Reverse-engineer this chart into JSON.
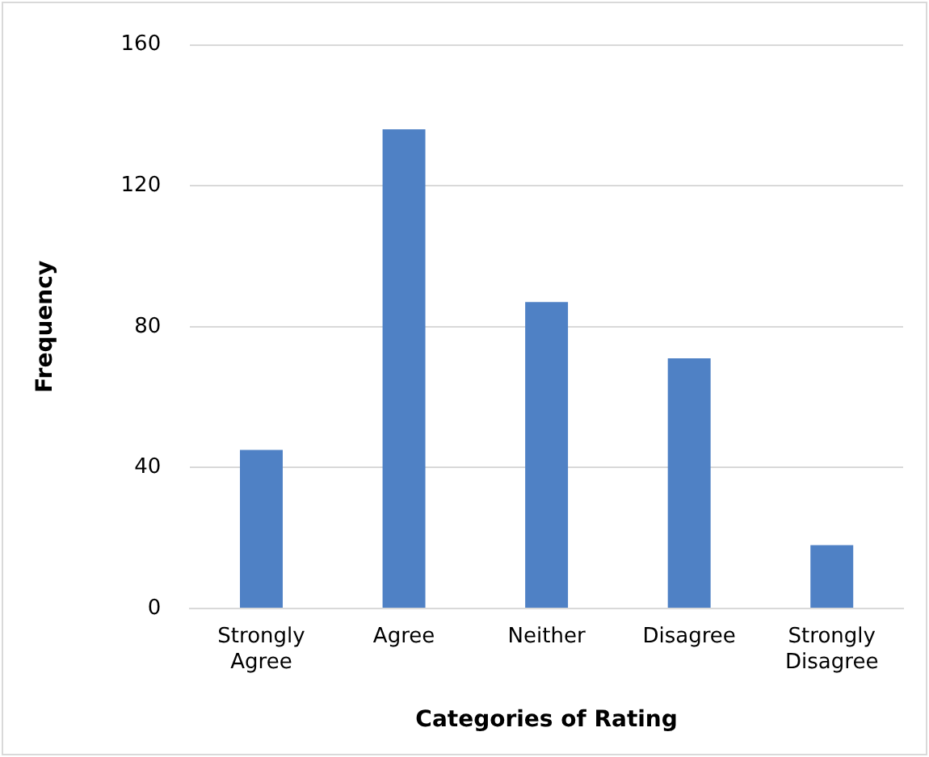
{
  "chart_data": {
    "type": "bar",
    "xlabel": "Categories of Rating",
    "ylabel": "Frequency",
    "categories": [
      "Strongly\nAgree",
      "Agree",
      "Neither",
      "Disagree",
      "Strongly\nDisagree"
    ],
    "values": [
      45,
      136,
      87,
      71,
      18
    ],
    "color": "#4f81c5",
    "ylim": [
      0,
      160
    ],
    "yticks": [
      0,
      40,
      80,
      120,
      160
    ],
    "grid": "y",
    "legend": false
  }
}
